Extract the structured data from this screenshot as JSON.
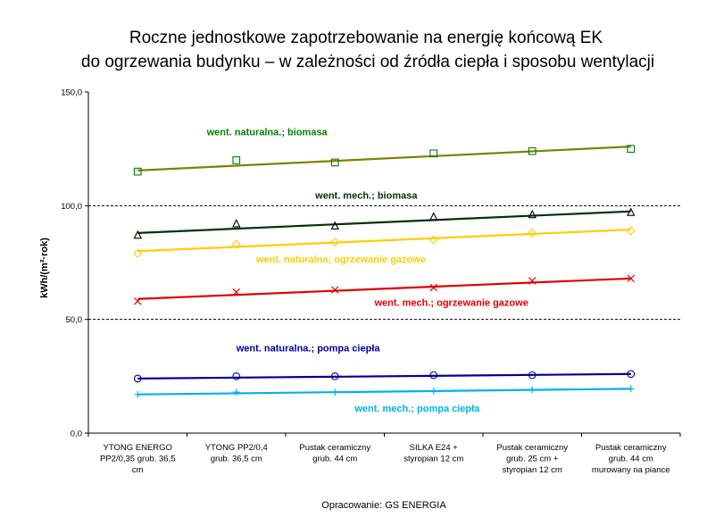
{
  "chart_data": {
    "type": "scatter",
    "title": [
      "Roczne jednostkowe zapotrzebowanie na energię końcową EK",
      "do ogrzewania budynku – w zależności od źródła ciepła i sposobu wentylacji"
    ],
    "ylabel": "kWh/(m²·rok)",
    "ylim": [
      0,
      150
    ],
    "yticks": [
      "0,0",
      "50,0",
      "100,0",
      "150,0"
    ],
    "ytick_values": [
      0,
      50,
      100,
      150
    ],
    "dashed_gridlines": [
      50,
      100
    ],
    "categories": [
      [
        "YTONG ENERGO",
        "PP2/0,35 grub. 36,5",
        "cm"
      ],
      [
        "YTONG PP2/0,4",
        "grub. 36,5 cm"
      ],
      [
        "Pustak ceramiczny",
        "grub. 44 cm"
      ],
      [
        "SILKA E24 +",
        "styropian 12 cm"
      ],
      [
        "Pustak ceramiczny",
        "grub. 25 cm +",
        "styropian 12 cm"
      ],
      [
        "Pustak ceramiczny",
        "grub. 44 cm",
        "murowany na piance"
      ]
    ],
    "series": [
      {
        "name": "went. naturalna; biomasa",
        "color": "#808000",
        "marker": "square",
        "values": [
          115,
          120,
          119,
          123,
          124,
          125
        ],
        "trend": [
          115.5,
          126
        ]
      },
      {
        "name": "went. mech.; biomasa",
        "color": "#003300",
        "marker": "triangle",
        "values": [
          87,
          92,
          91,
          95,
          96,
          97
        ],
        "trend": [
          88,
          97.5
        ]
      },
      {
        "name": "went. naturalna; ogrzewanie gazowe",
        "color": "#FFCC00",
        "marker": "diamond",
        "values": [
          79,
          83,
          84,
          85,
          88,
          89
        ],
        "trend": [
          80,
          89.5
        ]
      },
      {
        "name": "went. mech.; ogrzewanie gazowe",
        "color": "#DD0000",
        "marker": "x",
        "values": [
          58,
          62,
          63,
          64,
          67,
          68
        ],
        "trend": [
          59,
          68
        ]
      },
      {
        "name": "went. naturalna; pompa ciepła",
        "color": "#000099",
        "marker": "circle",
        "values": [
          24,
          25,
          25,
          25.5,
          25.5,
          26
        ],
        "trend": [
          24,
          26
        ]
      },
      {
        "name": "went. mech.; pompa ciepła",
        "color": "#00B0F0",
        "marker": "plus",
        "values": [
          17,
          18,
          18,
          18.5,
          19,
          19.5
        ],
        "trend": [
          17,
          19.5
        ]
      }
    ],
    "series_labels": [
      {
        "text": "went. naturalna.; biomasa",
        "color": "#008000",
        "x": 1.2,
        "y": 131
      },
      {
        "text": "went. mech.; biomasa",
        "color": "#003300",
        "x": 2.3,
        "y": 103
      },
      {
        "text": "went. naturalna; ogrzewanie gazowe",
        "color": "#FFCC00",
        "x": 1.7,
        "y": 75
      },
      {
        "text": "went. mech.; ogrzewanie gazowe",
        "color": "#DD0000",
        "x": 2.9,
        "y": 56
      },
      {
        "text": "went. naturalna.; pompa ciepła",
        "color": "#000099",
        "x": 1.5,
        "y": 36
      },
      {
        "text": "went. mech.; pompa ciepła",
        "color": "#00B0F0",
        "x": 2.7,
        "y": 9.5
      }
    ],
    "source": "Opracowanie: GS ENERGIA"
  }
}
